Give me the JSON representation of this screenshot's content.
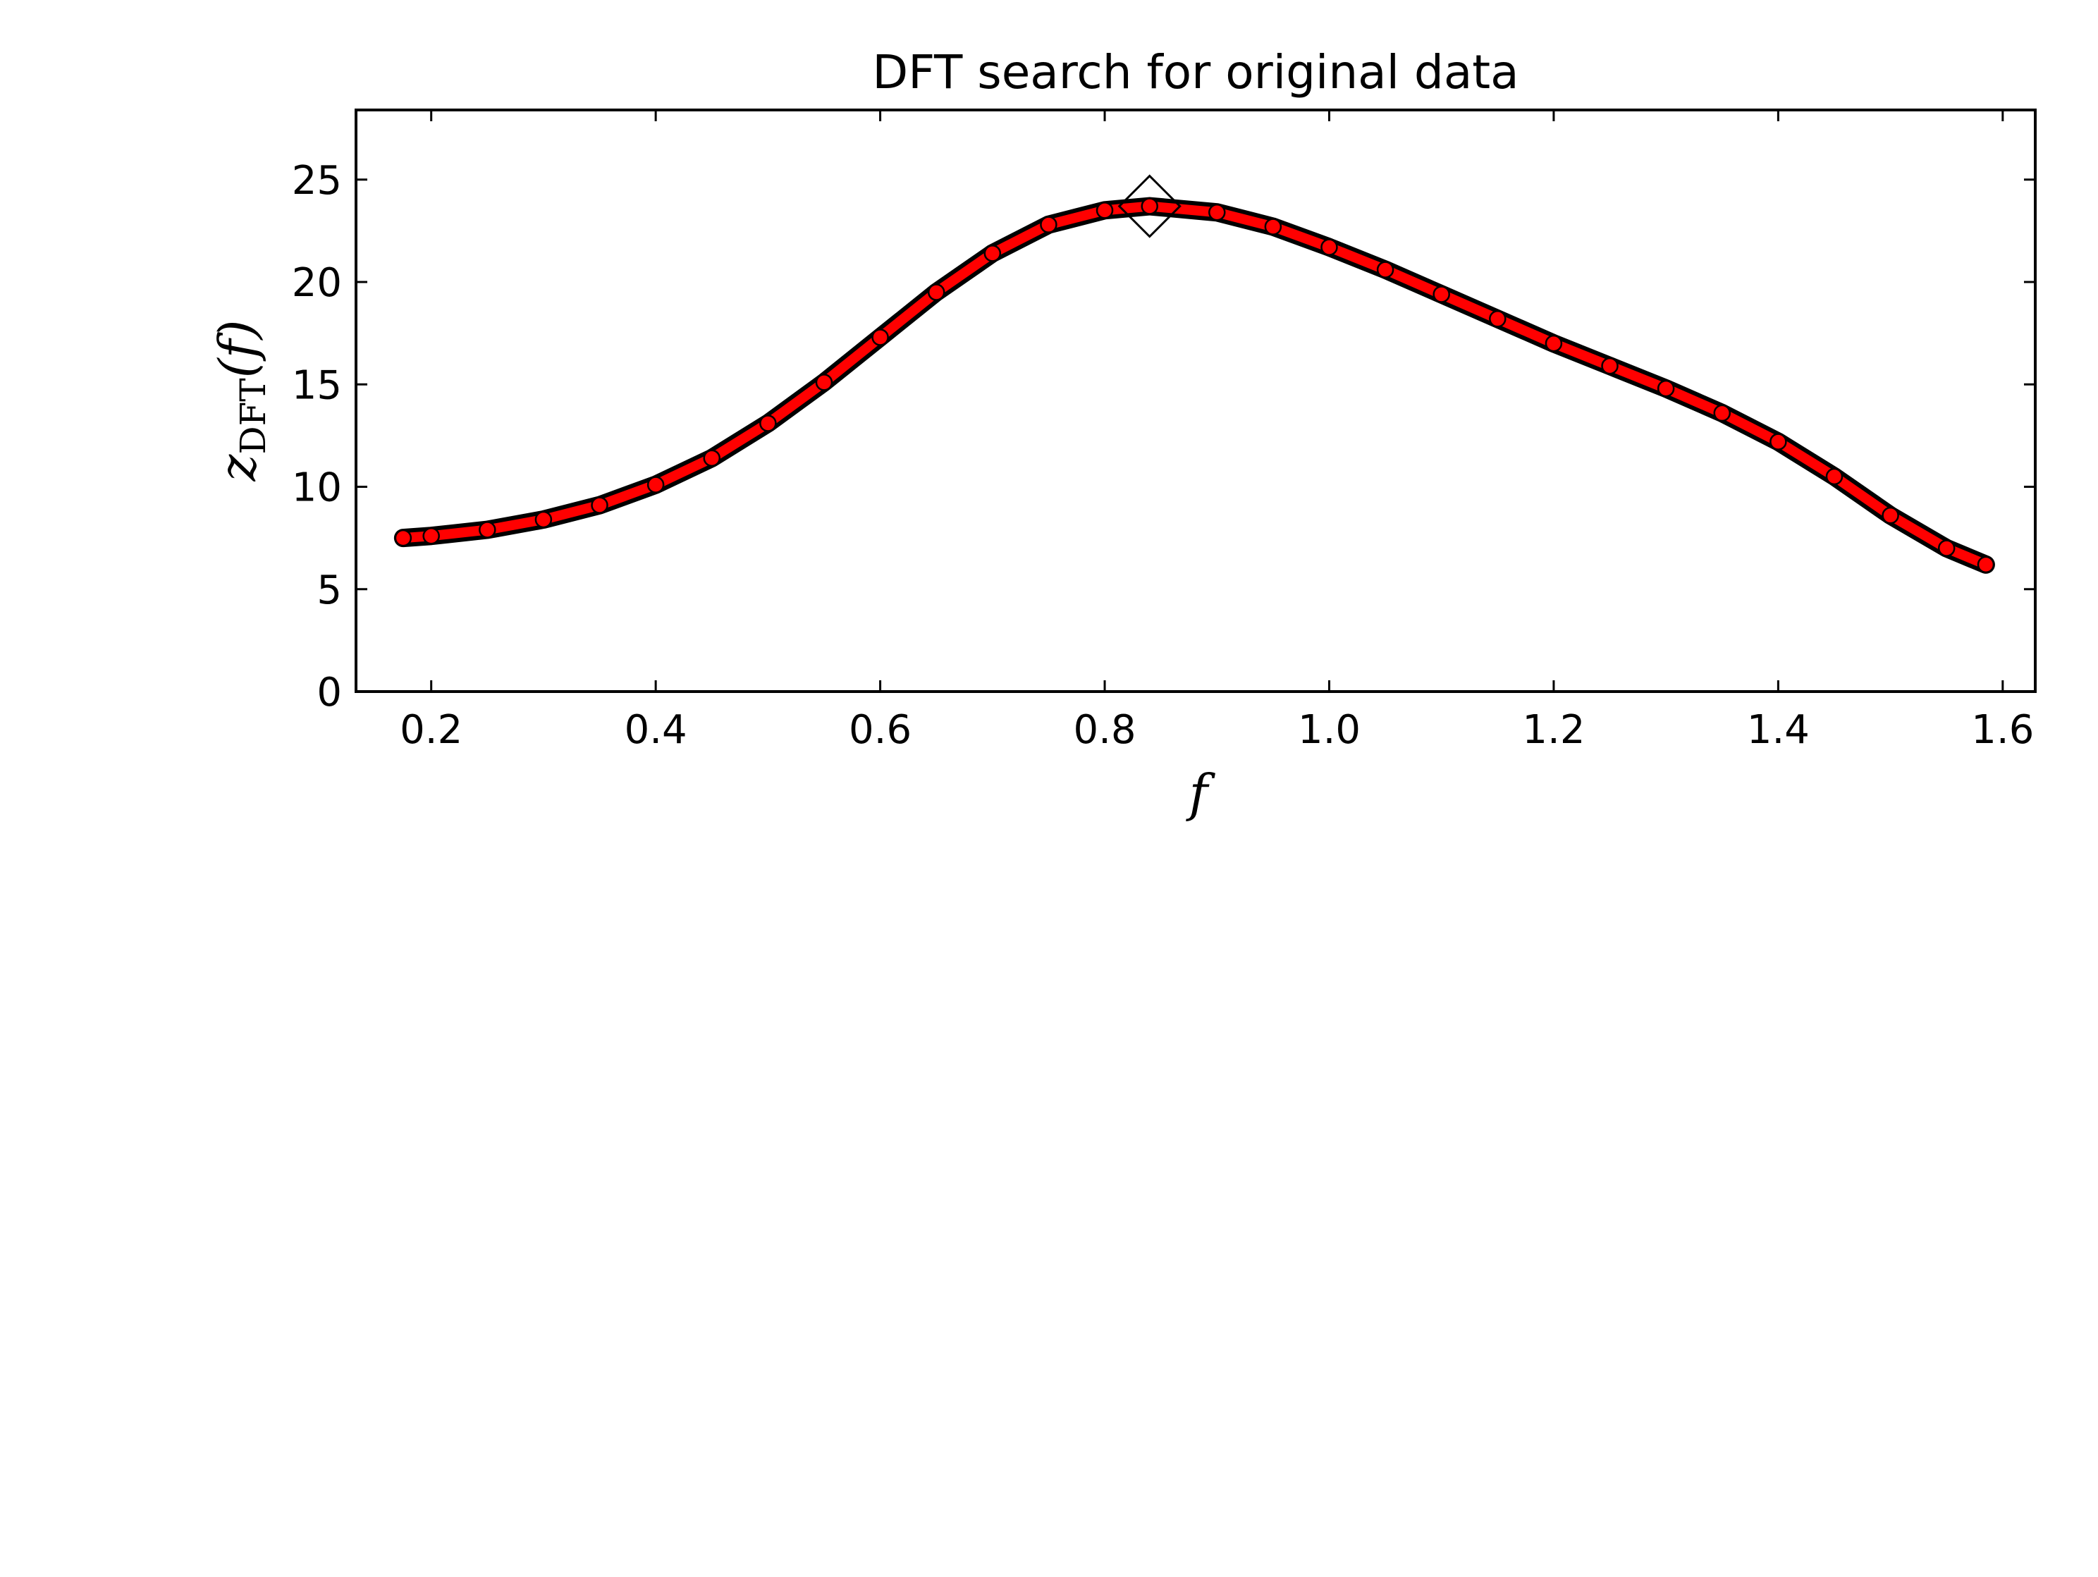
{
  "chart_data": {
    "type": "scatter",
    "title": "DFT search for original data",
    "xlabel": "f",
    "ylabel_main": "z",
    "ylabel_sub": "DFT",
    "ylabel_arg": "(f)",
    "xlim": [
      0.133,
      1.629
    ],
    "ylim": [
      0,
      28.4
    ],
    "xticks": [
      0.2,
      0.4,
      0.6,
      0.8,
      1.0,
      1.2,
      1.4,
      1.6
    ],
    "xtick_labels": [
      "0.2",
      "0.4",
      "0.6",
      "0.8",
      "1.0",
      "1.2",
      "1.4",
      "1.6"
    ],
    "yticks": [
      0,
      5,
      10,
      15,
      20,
      25
    ],
    "ytick_labels": [
      "0",
      "5",
      "10",
      "15",
      "20",
      "25"
    ],
    "grid": false,
    "marker_color": "#ff0000",
    "marker_edge_color": "#000000",
    "x": [
      0.175,
      0.2,
      0.25,
      0.3,
      0.35,
      0.4,
      0.45,
      0.5,
      0.55,
      0.6,
      0.65,
      0.7,
      0.75,
      0.8,
      0.84,
      0.9,
      0.95,
      1.0,
      1.05,
      1.1,
      1.15,
      1.2,
      1.25,
      1.3,
      1.35,
      1.4,
      1.45,
      1.5,
      1.55,
      1.585
    ],
    "y": [
      7.5,
      7.6,
      7.9,
      8.4,
      9.1,
      10.1,
      11.4,
      13.1,
      15.1,
      17.3,
      19.5,
      21.4,
      22.8,
      23.5,
      23.7,
      23.4,
      22.7,
      21.7,
      20.6,
      19.4,
      18.2,
      17.0,
      15.9,
      14.8,
      13.6,
      12.2,
      10.5,
      8.6,
      7.0,
      6.2
    ],
    "peak": {
      "x": 0.84,
      "y": 23.7,
      "marker": "diamond-open"
    }
  }
}
